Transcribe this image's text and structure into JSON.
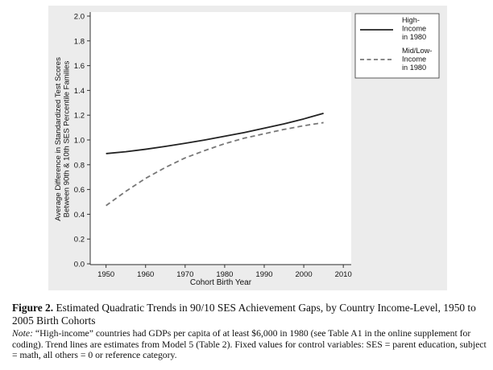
{
  "chart_data": {
    "type": "line",
    "x": [
      1950,
      1955,
      1960,
      1965,
      1970,
      1975,
      1980,
      1985,
      1990,
      1995,
      2000,
      2005
    ],
    "series": [
      {
        "name": "High-Income in 1980",
        "legend_lines": [
          "High-",
          "Income",
          "in 1980"
        ],
        "style": "solid",
        "color": "#222222",
        "values": [
          0.89,
          0.905,
          0.925,
          0.948,
          0.973,
          1.0,
          1.03,
          1.06,
          1.095,
          1.13,
          1.17,
          1.215
        ]
      },
      {
        "name": "Mid/Low-Income in 1980",
        "legend_lines": [
          "Mid/Low-",
          "Income",
          "in 1980"
        ],
        "style": "dashed",
        "color": "#777777",
        "values": [
          0.47,
          0.585,
          0.69,
          0.778,
          0.855,
          0.915,
          0.97,
          1.015,
          1.05,
          1.085,
          1.115,
          1.14
        ]
      }
    ],
    "xlabel": "Cohort Birth Year",
    "ylabel_lines": [
      "Average Difference in Standardized Test Scores",
      "Between 90th & 10th SES Percentile Families"
    ],
    "xticks": [
      1950,
      1960,
      1970,
      1980,
      1990,
      2000,
      2010
    ],
    "yticks": [
      "0.0",
      "0.2",
      "0.4",
      "0.6",
      "0.8",
      "1.0",
      "1.2",
      "1.4",
      "1.6",
      "1.8",
      "2.0"
    ],
    "xlim": [
      1946,
      2012
    ],
    "ylim": [
      0,
      2.0
    ],
    "grid": false,
    "legend": "top-right"
  },
  "caption": {
    "label": "Figure 2.",
    "title": "Estimated Quadratic Trends in 90/10 SES Achievement Gaps, by Country Income-Level, 1950 to 2005 Birth Cohorts",
    "note_label": "Note:",
    "note": "“High-income” countries had GDPs per capita of at least $6,000 in 1980 (see Table A1 in the online supplement for coding). Trend lines are estimates from Model 5 (Table 2). Fixed values for control variables: SES = parent education, subject = math, all others = 0 or reference category."
  }
}
